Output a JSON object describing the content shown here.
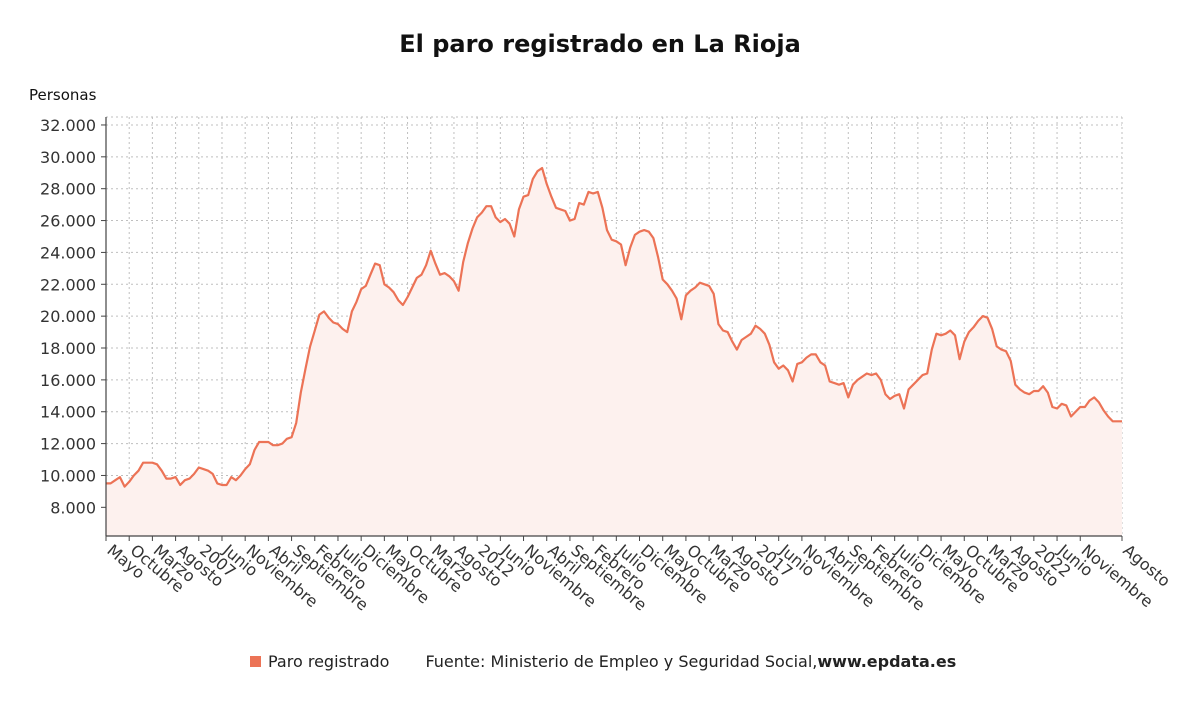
{
  "colors": {
    "line": "#ec7356",
    "area": "#fdf1ee",
    "grid": "#bfbfbf",
    "axis": "#444444"
  },
  "legend": {
    "series": "Paro registrado",
    "source_prefix": "Fuente: Ministerio de Empleo y Seguridad Social, ",
    "source_site": "www.epdata.es"
  },
  "chart_data": {
    "type": "area",
    "title": "El paro registrado en La Rioja",
    "ylabel": "Personas",
    "ylim": [
      6200,
      32500
    ],
    "yticks": [
      8000,
      10000,
      12000,
      14000,
      16000,
      18000,
      20000,
      22000,
      24000,
      26000,
      28000,
      30000,
      32000
    ],
    "ytick_labels": [
      "8.000",
      "10.000",
      "12.000",
      "14.000",
      "16.000",
      "18.000",
      "20.000",
      "22.000",
      "24.000",
      "26.000",
      "28.000",
      "30.000",
      "32.000"
    ],
    "grid": true,
    "legend_position": "bottom",
    "x_start": "2005-05",
    "x_end": "2023-08",
    "x_ticks": [
      {
        "month": "2005-05",
        "label": "Mayo"
      },
      {
        "month": "2005-10",
        "label": "Octubre"
      },
      {
        "month": "2006-03",
        "label": "Marzo"
      },
      {
        "month": "2006-08",
        "label": "Agosto"
      },
      {
        "month": "2007-01",
        "label": "2007"
      },
      {
        "month": "2007-06",
        "label": "Junio"
      },
      {
        "month": "2007-11",
        "label": "Noviembre"
      },
      {
        "month": "2008-04",
        "label": "Abril"
      },
      {
        "month": "2008-09",
        "label": "Septiembre"
      },
      {
        "month": "2009-02",
        "label": "Febrero"
      },
      {
        "month": "2009-07",
        "label": "Julio"
      },
      {
        "month": "2009-12",
        "label": "Diciembre"
      },
      {
        "month": "2010-05",
        "label": "Mayo"
      },
      {
        "month": "2010-10",
        "label": "Octubre"
      },
      {
        "month": "2011-03",
        "label": "Marzo"
      },
      {
        "month": "2011-08",
        "label": "Agosto"
      },
      {
        "month": "2012-01",
        "label": "2012"
      },
      {
        "month": "2012-06",
        "label": "Junio"
      },
      {
        "month": "2012-11",
        "label": "Noviembre"
      },
      {
        "month": "2013-04",
        "label": "Abril"
      },
      {
        "month": "2013-09",
        "label": "Septiembre"
      },
      {
        "month": "2014-02",
        "label": "Febrero"
      },
      {
        "month": "2014-07",
        "label": "Julio"
      },
      {
        "month": "2014-12",
        "label": "Diciembre"
      },
      {
        "month": "2015-05",
        "label": "Mayo"
      },
      {
        "month": "2015-10",
        "label": "Octubre"
      },
      {
        "month": "2016-03",
        "label": "Marzo"
      },
      {
        "month": "2016-08",
        "label": "Agosto"
      },
      {
        "month": "2017-01",
        "label": "2017"
      },
      {
        "month": "2017-06",
        "label": "Junio"
      },
      {
        "month": "2017-11",
        "label": "Noviembre"
      },
      {
        "month": "2018-04",
        "label": "Abril"
      },
      {
        "month": "2018-09",
        "label": "Septiembre"
      },
      {
        "month": "2019-02",
        "label": "Febrero"
      },
      {
        "month": "2019-07",
        "label": "Julio"
      },
      {
        "month": "2019-12",
        "label": "Diciembre"
      },
      {
        "month": "2020-05",
        "label": "Mayo"
      },
      {
        "month": "2020-10",
        "label": "Octubre"
      },
      {
        "month": "2021-03",
        "label": "Marzo"
      },
      {
        "month": "2021-08",
        "label": "Agosto"
      },
      {
        "month": "2022-01",
        "label": "2022"
      },
      {
        "month": "2022-06",
        "label": "Junio"
      },
      {
        "month": "2022-11",
        "label": "Noviembre"
      },
      {
        "month": "2023-08",
        "label": "Agosto"
      }
    ],
    "series": [
      {
        "name": "Paro registrado",
        "x": [
          "2005-05",
          "2005-06",
          "2005-07",
          "2005-08",
          "2005-09",
          "2005-10",
          "2005-11",
          "2005-12",
          "2006-01",
          "2006-02",
          "2006-03",
          "2006-04",
          "2006-05",
          "2006-06",
          "2006-07",
          "2006-08",
          "2006-09",
          "2006-10",
          "2006-11",
          "2006-12",
          "2007-01",
          "2007-02",
          "2007-03",
          "2007-04",
          "2007-05",
          "2007-06",
          "2007-07",
          "2007-08",
          "2007-09",
          "2007-10",
          "2007-11",
          "2007-12",
          "2008-01",
          "2008-02",
          "2008-03",
          "2008-04",
          "2008-05",
          "2008-06",
          "2008-07",
          "2008-08",
          "2008-09",
          "2008-10",
          "2008-11",
          "2008-12",
          "2009-01",
          "2009-02",
          "2009-03",
          "2009-04",
          "2009-05",
          "2009-06",
          "2009-07",
          "2009-08",
          "2009-09",
          "2009-10",
          "2009-11",
          "2009-12",
          "2010-01",
          "2010-02",
          "2010-03",
          "2010-04",
          "2010-05",
          "2010-06",
          "2010-07",
          "2010-08",
          "2010-09",
          "2010-10",
          "2010-11",
          "2010-12",
          "2011-01",
          "2011-02",
          "2011-03",
          "2011-04",
          "2011-05",
          "2011-06",
          "2011-07",
          "2011-08",
          "2011-09",
          "2011-10",
          "2011-11",
          "2011-12",
          "2012-01",
          "2012-02",
          "2012-03",
          "2012-04",
          "2012-05",
          "2012-06",
          "2012-07",
          "2012-08",
          "2012-09",
          "2012-10",
          "2012-11",
          "2012-12",
          "2013-01",
          "2013-02",
          "2013-03",
          "2013-04",
          "2013-05",
          "2013-06",
          "2013-07",
          "2013-08",
          "2013-09",
          "2013-10",
          "2013-11",
          "2013-12",
          "2014-01",
          "2014-02",
          "2014-03",
          "2014-04",
          "2014-05",
          "2014-06",
          "2014-07",
          "2014-08",
          "2014-09",
          "2014-10",
          "2014-11",
          "2014-12",
          "2015-01",
          "2015-02",
          "2015-03",
          "2015-04",
          "2015-05",
          "2015-06",
          "2015-07",
          "2015-08",
          "2015-09",
          "2015-10",
          "2015-11",
          "2015-12",
          "2016-01",
          "2016-02",
          "2016-03",
          "2016-04",
          "2016-05",
          "2016-06",
          "2016-07",
          "2016-08",
          "2016-09",
          "2016-10",
          "2016-11",
          "2016-12",
          "2017-01",
          "2017-02",
          "2017-03",
          "2017-04",
          "2017-05",
          "2017-06",
          "2017-07",
          "2017-08",
          "2017-09",
          "2017-10",
          "2017-11",
          "2017-12",
          "2018-01",
          "2018-02",
          "2018-03",
          "2018-04",
          "2018-05",
          "2018-06",
          "2018-07",
          "2018-08",
          "2018-09",
          "2018-10",
          "2018-11",
          "2018-12",
          "2019-01",
          "2019-02",
          "2019-03",
          "2019-04",
          "2019-05",
          "2019-06",
          "2019-07",
          "2019-08",
          "2019-09",
          "2019-10",
          "2019-11",
          "2019-12",
          "2020-01",
          "2020-02",
          "2020-03",
          "2020-04",
          "2020-05",
          "2020-06",
          "2020-07",
          "2020-08",
          "2020-09",
          "2020-10",
          "2020-11",
          "2020-12",
          "2021-01",
          "2021-02",
          "2021-03",
          "2021-04",
          "2021-05",
          "2021-06",
          "2021-07",
          "2021-08",
          "2021-09",
          "2021-10",
          "2021-11",
          "2021-12",
          "2022-01",
          "2022-02",
          "2022-03",
          "2022-04",
          "2022-05",
          "2022-06",
          "2022-07",
          "2022-08",
          "2022-09",
          "2022-10",
          "2022-11",
          "2022-12",
          "2023-01",
          "2023-02",
          "2023-03",
          "2023-04",
          "2023-05",
          "2023-06",
          "2023-07",
          "2023-08"
        ],
        "values": [
          9500,
          9500,
          9700,
          9900,
          9300,
          9600,
          10000,
          10300,
          10800,
          10800,
          10800,
          10700,
          10300,
          9800,
          9800,
          9900,
          9400,
          9700,
          9800,
          10100,
          10500,
          10400,
          10300,
          10100,
          9500,
          9400,
          9400,
          9900,
          9700,
          10000,
          10400,
          10700,
          11600,
          12100,
          12100,
          12100,
          11900,
          11900,
          12000,
          12300,
          12400,
          13300,
          15200,
          16700,
          18100,
          19100,
          20100,
          20300,
          19900,
          19600,
          19500,
          19200,
          19000,
          20300,
          20900,
          21700,
          21900,
          22600,
          23300,
          23200,
          22000,
          21800,
          21500,
          21000,
          20700,
          21200,
          21800,
          22400,
          22600,
          23200,
          24100,
          23300,
          22600,
          22700,
          22500,
          22200,
          21600,
          23400,
          24600,
          25500,
          26200,
          26500,
          26900,
          26900,
          26200,
          25900,
          26100,
          25800,
          25000,
          26700,
          27500,
          27600,
          28600,
          29100,
          29300,
          28300,
          27500,
          26800,
          26700,
          26600,
          26000,
          26100,
          27100,
          27000,
          27800,
          27700,
          27800,
          26800,
          25400,
          24800,
          24700,
          24500,
          23200,
          24300,
          25100,
          25300,
          25400,
          25300,
          24900,
          23700,
          22300,
          22000,
          21600,
          21100,
          19800,
          21300,
          21600,
          21800,
          22100,
          22000,
          21900,
          21400,
          19500,
          19100,
          19000,
          18400,
          17900,
          18500,
          18700,
          18900,
          19400,
          19200,
          18900,
          18200,
          17100,
          16700,
          16900,
          16600,
          15900,
          17000,
          17100,
          17400,
          17600,
          17600,
          17100,
          16900,
          15900,
          15800,
          15700,
          15800,
          14900,
          15700,
          16000,
          16200,
          16400,
          16300,
          16400,
          16000,
          15100,
          14800,
          15000,
          15100,
          14200,
          15400,
          15700,
          16000,
          16300,
          16400,
          17900,
          18900,
          18800,
          18900,
          19100,
          18800,
          17300,
          18400,
          19000,
          19300,
          19700,
          20000,
          19900,
          19200,
          18100,
          17900,
          17800,
          17200,
          15700,
          15400,
          15200,
          15100,
          15300,
          15300,
          15600,
          15200,
          14300,
          14200,
          14500,
          14400,
          13700,
          14000,
          14300,
          14300,
          14700,
          14900,
          14600,
          14100,
          13700,
          13400,
          13400,
          13400
        ]
      }
    ]
  }
}
